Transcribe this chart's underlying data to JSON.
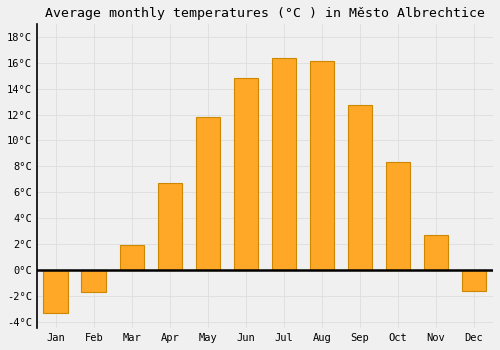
{
  "title": "Average monthly temperatures (°C ) in Město Albrechtice",
  "months": [
    "Jan",
    "Feb",
    "Mar",
    "Apr",
    "May",
    "Jun",
    "Jul",
    "Aug",
    "Sep",
    "Oct",
    "Nov",
    "Dec"
  ],
  "temperatures": [
    -3.3,
    -1.7,
    1.9,
    6.7,
    11.8,
    14.8,
    16.4,
    16.1,
    12.7,
    8.3,
    2.7,
    -1.6
  ],
  "bar_color": "#FFA726",
  "bar_edge_color": "#CC8800",
  "ylim": [
    -4.5,
    19
  ],
  "yticks": [
    -4,
    -2,
    0,
    2,
    4,
    6,
    8,
    10,
    12,
    14,
    16,
    18
  ],
  "background_color": "#F0F0F0",
  "grid_color": "#DDDDDD",
  "title_fontsize": 9.5,
  "tick_fontsize": 7.5,
  "zero_line_color": "#000000",
  "spine_color": "#000000"
}
